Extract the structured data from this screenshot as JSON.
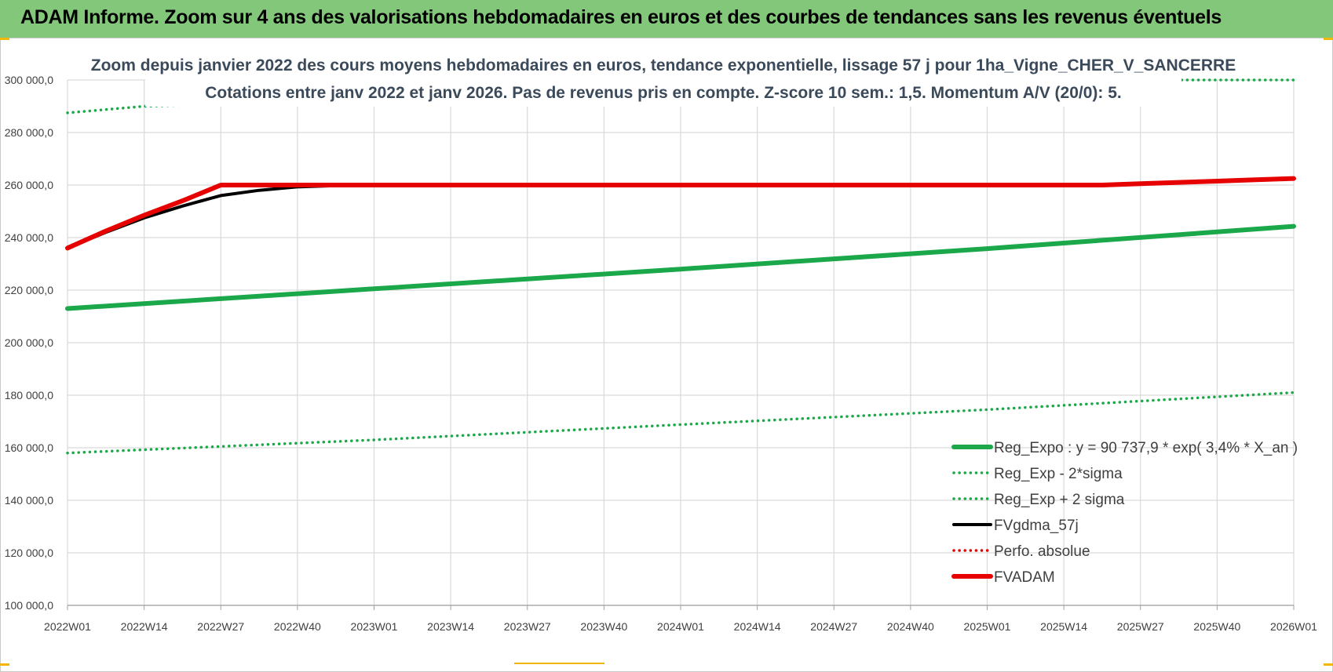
{
  "banner": {
    "title": "ADAM Informe. Zoom sur 4 ans des valorisations hebdomadaires en euros et des courbes de tendances sans les revenus éventuels"
  },
  "chart_data": {
    "type": "line",
    "title": "Zoom depuis janvier 2022 des cours moyens hebdomadaires en euros, tendance exponentielle, lissage 57 j pour 1ha_Vigne_CHER_V_SANCERRE",
    "subtitle": "Cotations entre janv 2022 et janv 2026. Pas de revenus pris en compte. Z-score 10 sem.: 1,5. Momentum A/V (20/0): 5.",
    "categories": [
      "2022W01",
      "2022W14",
      "2022W27",
      "2022W40",
      "2023W01",
      "2023W14",
      "2023W27",
      "2023W40",
      "2024W01",
      "2024W14",
      "2024W27",
      "2024W40",
      "2025W01",
      "2025W14",
      "2025W27",
      "2025W40",
      "2026W01"
    ],
    "y_ticks": [
      "100 000,0",
      "120 000,0",
      "140 000,0",
      "160 000,0",
      "180 000,0",
      "200 000,0",
      "220 000,0",
      "240 000,0",
      "260 000,0",
      "280 000,0",
      "300 000,0"
    ],
    "ylim": [
      100000,
      300000
    ],
    "grid": true,
    "legend_position": "bottom-right",
    "series": [
      {
        "name": "Reg_Expo : y = 90 737,9 * exp( 3,4% * X_an )",
        "style": "solid-thick",
        "color": "#1aa84a",
        "x": [
          0,
          4,
          8,
          12,
          16
        ],
        "values": [
          213000,
          220500,
          228000,
          235800,
          244300
        ]
      },
      {
        "name": "Reg_Exp - 2*sigma",
        "style": "dotted",
        "color": "#1aa84a",
        "x": [
          0,
          4,
          8,
          12,
          16
        ],
        "values": [
          158000,
          163000,
          168800,
          174500,
          181000
        ]
      },
      {
        "name": "Reg_Exp + 2 sigma",
        "style": "dotted",
        "color": "#1aa84a",
        "x": [
          0,
          1,
          14.5,
          16
        ],
        "values": [
          287500,
          290000,
          300000,
          300000
        ]
      },
      {
        "name": "FVgdma_57j",
        "style": "solid",
        "color": "#000000",
        "x": [
          0,
          0.5,
          1,
          1.5,
          2,
          2.5,
          3,
          3.5,
          4
        ],
        "values": [
          236000,
          242000,
          247500,
          252000,
          256000,
          258000,
          259300,
          259800,
          260000
        ]
      },
      {
        "name": "Perfo. absolue",
        "style": "dotted",
        "color": "#e00000",
        "x": [],
        "values": []
      },
      {
        "name": "FVADAM",
        "style": "solid-thick",
        "color": "#e60000",
        "x": [
          0,
          0.5,
          1,
          1.5,
          2,
          2.5,
          3,
          3.5,
          4,
          13.5,
          14,
          14.5,
          15,
          15.5,
          16
        ],
        "values": [
          236000,
          242500,
          248500,
          254000,
          260000,
          260000,
          260000,
          260000,
          260000,
          260000,
          260500,
          261000,
          261500,
          262000,
          262500
        ]
      }
    ]
  }
}
